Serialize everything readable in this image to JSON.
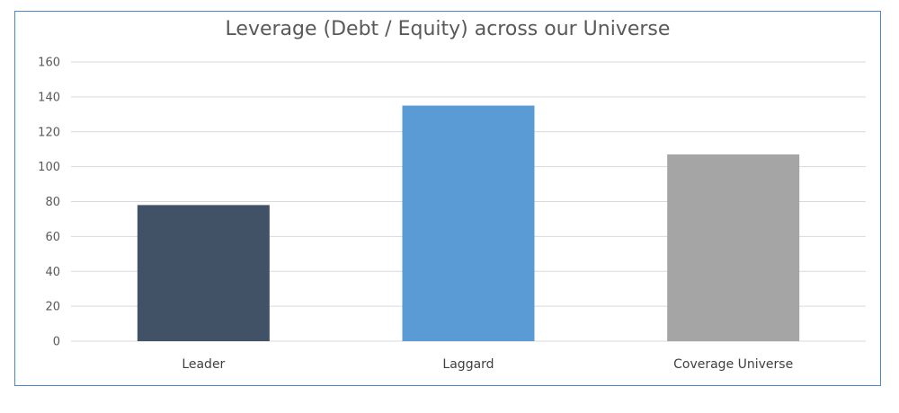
{
  "chart_data": {
    "type": "bar",
    "title": "Leverage (Debt / Equity) across our Universe",
    "xlabel": "",
    "ylabel": "",
    "categories": [
      "Leader",
      "Laggard",
      "Coverage Universe"
    ],
    "values": [
      78,
      135,
      107
    ],
    "colors": [
      "#425266",
      "#5b9bd5",
      "#a5a5a5"
    ],
    "ylim": [
      0,
      160
    ],
    "yticks": [
      0,
      20,
      40,
      60,
      80,
      100,
      120,
      140,
      160
    ],
    "grid": true,
    "gridColor": "#d9d9d9",
    "frameColor": "#4a86c8",
    "legend": "none"
  }
}
